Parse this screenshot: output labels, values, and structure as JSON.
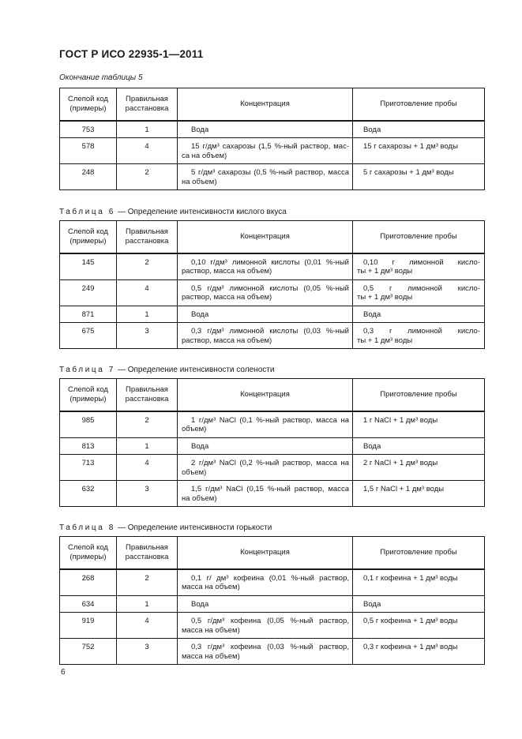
{
  "page": {
    "standard_code": "ГОСТ Р ИСО 22935-1—2011",
    "page_number": "6"
  },
  "columns": [
    "Слепой код (примеры)",
    "Правильная расстановка",
    "Концентрация",
    "Приготовление пробы"
  ],
  "tables": [
    {
      "note": "Окончание таблицы 5",
      "rows": [
        {
          "code": "753",
          "rank": "1",
          "conc": [
            "Вода"
          ],
          "prep": [
            "Вода"
          ]
        },
        {
          "code": "578",
          "rank": "4",
          "conc": [
            "15 г/дм³ сахарозы (1,5 %-ный раствор, мас-",
            "са на объем)"
          ],
          "prep": [
            "15 г сахарозы + 1 дм³ воды"
          ]
        },
        {
          "code": "248",
          "rank": "2",
          "conc": [
            "5 г/дм³ сахарозы (0,5 %-ный раствор, масса",
            "на объем)"
          ],
          "prep": [
            "5 г сахарозы + 1 дм³ воды"
          ]
        }
      ]
    },
    {
      "caption_label": "Таблица 6",
      "caption_text": "— Определение интенсивности кислого вкуса",
      "rows": [
        {
          "code": "145",
          "rank": "2",
          "conc": [
            "0,10 г/дм³ лимонной кислоты (0,01 %-ный",
            "раствор, масса на объем)"
          ],
          "prep": [
            "0,10 г лимонной кисло-",
            "ты + 1 дм³ воды"
          ]
        },
        {
          "code": "249",
          "rank": "4",
          "conc": [
            "0,5 г/дм³ лимонной кислоты (0,05 %-ный",
            "раствор, масса на объем)"
          ],
          "prep": [
            "0,5 г лимонной кисло-",
            "ты + 1 дм³ воды"
          ]
        },
        {
          "code": "871",
          "rank": "1",
          "conc": [
            "Вода"
          ],
          "prep": [
            "Вода"
          ]
        },
        {
          "code": "675",
          "rank": "3",
          "conc": [
            "0,3 г/дм³ лимонной кислоты (0,03 %-ный",
            "раствор, масса на объем)"
          ],
          "prep": [
            "0,3 г лимонной кисло-",
            "ты + 1 дм³ воды"
          ]
        }
      ]
    },
    {
      "caption_label": "Таблица 7",
      "caption_text": "— Определение интенсивности солености",
      "rows": [
        {
          "code": "985",
          "rank": "2",
          "conc": [
            "1 г/дм³ NaCl (0,1 %-ный раствор, масса на",
            "объем)"
          ],
          "prep": [
            "1 г NaCl + 1 дм³ воды"
          ]
        },
        {
          "code": "813",
          "rank": "1",
          "conc": [
            "Вода"
          ],
          "prep": [
            "Вода"
          ]
        },
        {
          "code": "713",
          "rank": "4",
          "conc": [
            "2 г/дм³ NaCl (0,2 %-ный раствор, масса на",
            "объем)"
          ],
          "prep": [
            "2 г NaCl + 1 дм³ воды"
          ]
        },
        {
          "code": "632",
          "rank": "3",
          "conc": [
            "1,5 г/дм³ NaCl (0,15 %-ный раствор, масса",
            "на объем)"
          ],
          "prep": [
            "1,5 г NaCl + 1 дм³ воды"
          ]
        }
      ]
    },
    {
      "caption_label": "Таблица 8",
      "caption_text": "— Определение интенсивности горькости",
      "rows": [
        {
          "code": "268",
          "rank": "2",
          "conc": [
            "0,1 г/ дм³ кофеина (0,01 %-ный раствор,",
            "масса на объем)"
          ],
          "prep": [
            "0,1 г кофеина + 1 дм³ воды"
          ]
        },
        {
          "code": "634",
          "rank": "1",
          "conc": [
            "Вода"
          ],
          "prep": [
            "Вода"
          ]
        },
        {
          "code": "919",
          "rank": "4",
          "conc": [
            "0,5 г/дм³ кофеина (0,05 %-ный раствор,",
            "масса на объем)"
          ],
          "prep": [
            "0,5 г кофеина + 1 дм³ воды"
          ]
        },
        {
          "code": "752",
          "rank": "3",
          "conc": [
            "0,3 г/дм³ кофеина (0,03 %-ный раствор,",
            "масса на объем)"
          ],
          "prep": [
            "0,3 г кофеина + 1 дм³ воды"
          ]
        }
      ]
    }
  ]
}
